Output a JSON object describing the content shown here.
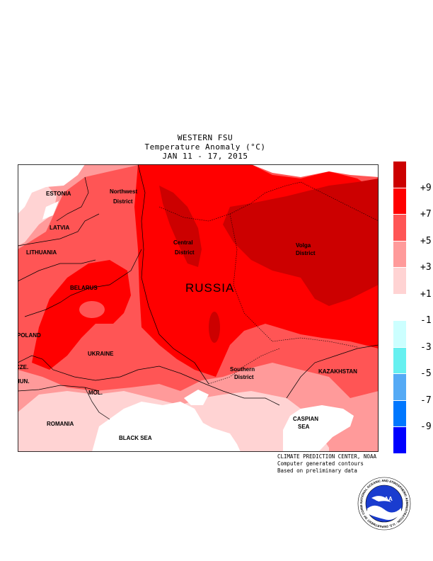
{
  "title": {
    "line1": "WESTERN FSU",
    "line2": "Temperature Anomaly (°C)",
    "line3": "JAN 11 - 17, 2015"
  },
  "map_labels": {
    "estonia": "ESTONIA",
    "latvia": "LATVIA",
    "lithuania": "LITHUANIA",
    "belarus": "BELARUS",
    "poland": "POLAND",
    "cze": "CZE.",
    "hun": "HUN.",
    "ukraine": "UKRAINE",
    "mol": "MOL.",
    "romania": "ROMANIA",
    "black_sea": "BLACK SEA",
    "northwest_1": "Northwest",
    "northwest_2": "District",
    "central_1": "Central",
    "central_2": "District",
    "volga_1": "Volga",
    "volga_2": "District",
    "russia": "RUSSIA",
    "southern_1": "Southern",
    "southern_2": "District",
    "kazakhstan": "KAZAKHSTAN",
    "caspian_1": "CASPIAN",
    "caspian_2": "SEA"
  },
  "legend": {
    "colors": [
      "#cc0000",
      "#ff0000",
      "#ff5555",
      "#ff9a9a",
      "#ffd3d3",
      "#ffffff",
      "#ccffff",
      "#66f0f0",
      "#55aaf5",
      "#0077ff",
      "#0000ff"
    ],
    "ticks": [
      "+9",
      "+7",
      "+5",
      "+3",
      "+1",
      "-1",
      "-3",
      "-5",
      "-7",
      "-9"
    ]
  },
  "credits": {
    "line1": "CLIMATE PREDICTION CENTER, NOAA",
    "line2": "Computer generated contours",
    "line3": "Based on preliminary data"
  },
  "logo": {
    "text": "NOAA",
    "ring_text": "NATIONAL OCEANIC AND ATMOSPHERIC ADMINISTRATION · U.S. DEPARTMENT OF COMMERCE"
  }
}
